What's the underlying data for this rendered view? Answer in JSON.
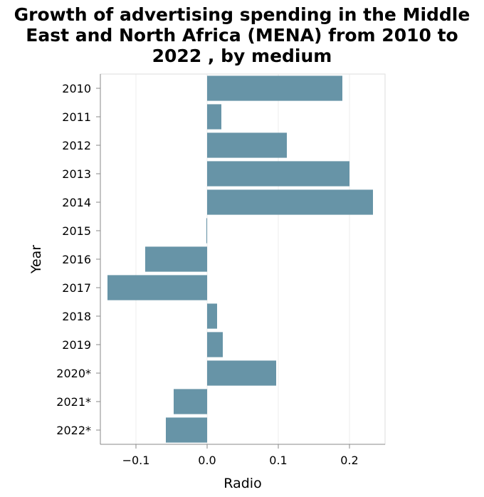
{
  "chart_data": {
    "type": "bar",
    "orientation": "horizontal",
    "title_lines": [
      "Growth of advertising spending in the Middle",
      "East and North Africa (MENA) from 2010 to",
      "2022 , by medium"
    ],
    "xlabel": "Radio",
    "ylabel": "Year",
    "categories": [
      "2010",
      "2011",
      "2012",
      "2013",
      "2014",
      "2015",
      "2016",
      "2017",
      "2018",
      "2019",
      "2020*",
      "2021*",
      "2022*"
    ],
    "values": [
      0.19,
      0.02,
      0.112,
      0.2,
      0.233,
      -0.001,
      -0.087,
      -0.14,
      0.014,
      0.022,
      0.097,
      -0.047,
      -0.058
    ],
    "xlim": [
      -0.15,
      0.25
    ],
    "xticks": [
      -0.1,
      0.0,
      0.1,
      0.2
    ],
    "xtick_labels": [
      "−0.1",
      "0.0",
      "0.1",
      "0.2"
    ],
    "grid": true,
    "bar_color": "#6794a7",
    "grid_color": "#eeeeee",
    "axis_color": "#888888"
  }
}
